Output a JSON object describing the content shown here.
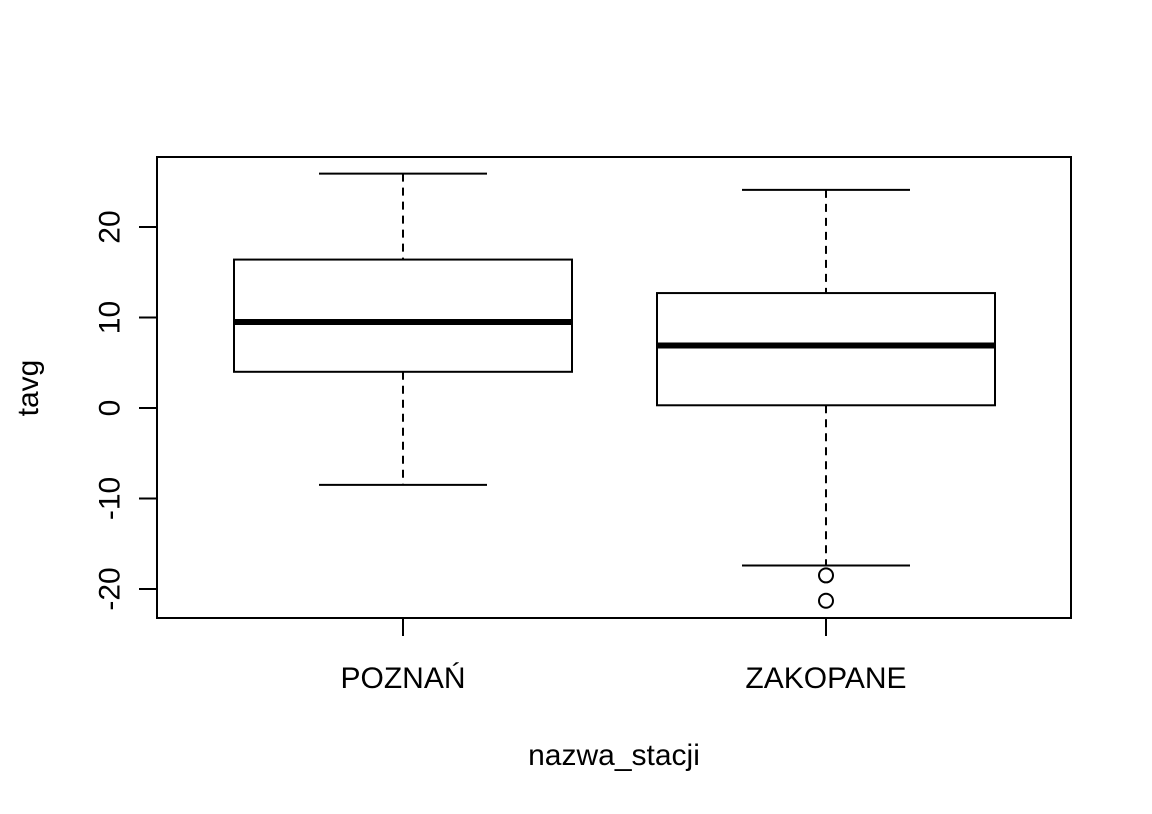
{
  "chart_data": {
    "type": "boxplot",
    "title": "",
    "xlabel": "nazwa_stacji",
    "ylabel": "tavg",
    "ylim": [
      -23,
      28
    ],
    "yticks": [
      -20,
      -10,
      0,
      10,
      20
    ],
    "ytick_labels": [
      "-20",
      "-10",
      "0",
      "10",
      "20"
    ],
    "grid": false,
    "legend": "none",
    "categories": [
      "POZNAŃ",
      "ZAKOPANE"
    ],
    "boxes": [
      {
        "category": "POZNAŃ",
        "whisker_low": -8.5,
        "q1": 4.0,
        "median": 9.5,
        "q3": 16.4,
        "whisker_high": 25.9,
        "outliers": []
      },
      {
        "category": "ZAKOPANE",
        "whisker_low": -17.4,
        "q1": 0.3,
        "median": 6.9,
        "q3": 12.7,
        "whisker_high": 24.1,
        "outliers": [
          -18.5,
          -21.3
        ]
      }
    ]
  }
}
